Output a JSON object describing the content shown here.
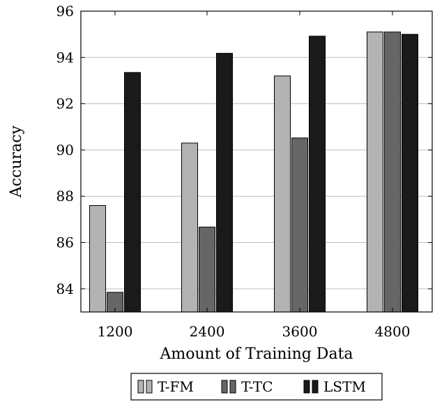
{
  "chart_data": {
    "type": "bar",
    "title": "",
    "xlabel": "Amount of Training Data",
    "ylabel": "Accuracy",
    "categories": [
      "1200",
      "2400",
      "3600",
      "4800"
    ],
    "ylim": [
      83,
      96
    ],
    "yticks": [
      84,
      86,
      88,
      90,
      92,
      94,
      96
    ],
    "grid": "horizontal",
    "legend_position": "bottom-center",
    "series": [
      {
        "name": "T-FM",
        "color": "#b3b3b3",
        "values": [
          87.6,
          90.3,
          93.2,
          95.1
        ]
      },
      {
        "name": "T-TC",
        "color": "#666666",
        "values": [
          83.85,
          86.67,
          90.52,
          95.1
        ]
      },
      {
        "name": "LSTM",
        "color": "#1a1a1a",
        "values": [
          93.35,
          94.18,
          94.92,
          95.0
        ]
      }
    ]
  }
}
